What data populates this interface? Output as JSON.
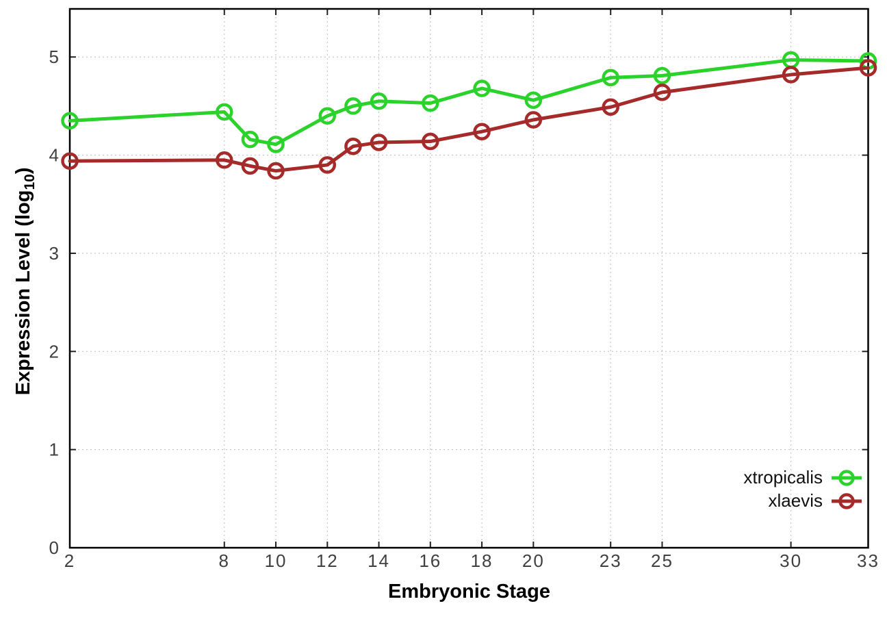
{
  "chart_data": {
    "type": "line",
    "title": "",
    "xlabel": "Embryonic Stage",
    "ylabel": {
      "text": "Expression Level (log",
      "sub": "10",
      "close": ")"
    },
    "x": [
      2,
      8,
      9,
      10,
      12,
      13,
      14,
      16,
      18,
      20,
      23,
      25,
      30,
      33
    ],
    "series": [
      {
        "name": "xtropicalis",
        "color": "#2bd22b",
        "values": [
          4.35,
          4.44,
          4.16,
          4.11,
          4.4,
          4.5,
          4.55,
          4.53,
          4.68,
          4.56,
          4.79,
          4.81,
          4.97,
          4.96
        ]
      },
      {
        "name": "xlaevis",
        "color": "#a52a2a",
        "values": [
          3.94,
          3.95,
          3.89,
          3.84,
          3.9,
          4.09,
          4.13,
          4.14,
          4.24,
          4.36,
          4.49,
          4.64,
          4.82,
          4.89
        ]
      }
    ],
    "xticks": [
      2,
      8,
      10,
      12,
      14,
      16,
      18,
      20,
      23,
      25,
      30,
      33
    ],
    "yticks": [
      0,
      1,
      2,
      3,
      4,
      5
    ],
    "xlim": [
      2,
      33
    ],
    "ylim": [
      0,
      5.49
    ],
    "grid": true,
    "legend_position": "inside-bottom-right",
    "marker": "open-circle",
    "colors": {
      "grid": "#bbbbbb",
      "border": "#000000",
      "tick_text": "#404040"
    }
  }
}
